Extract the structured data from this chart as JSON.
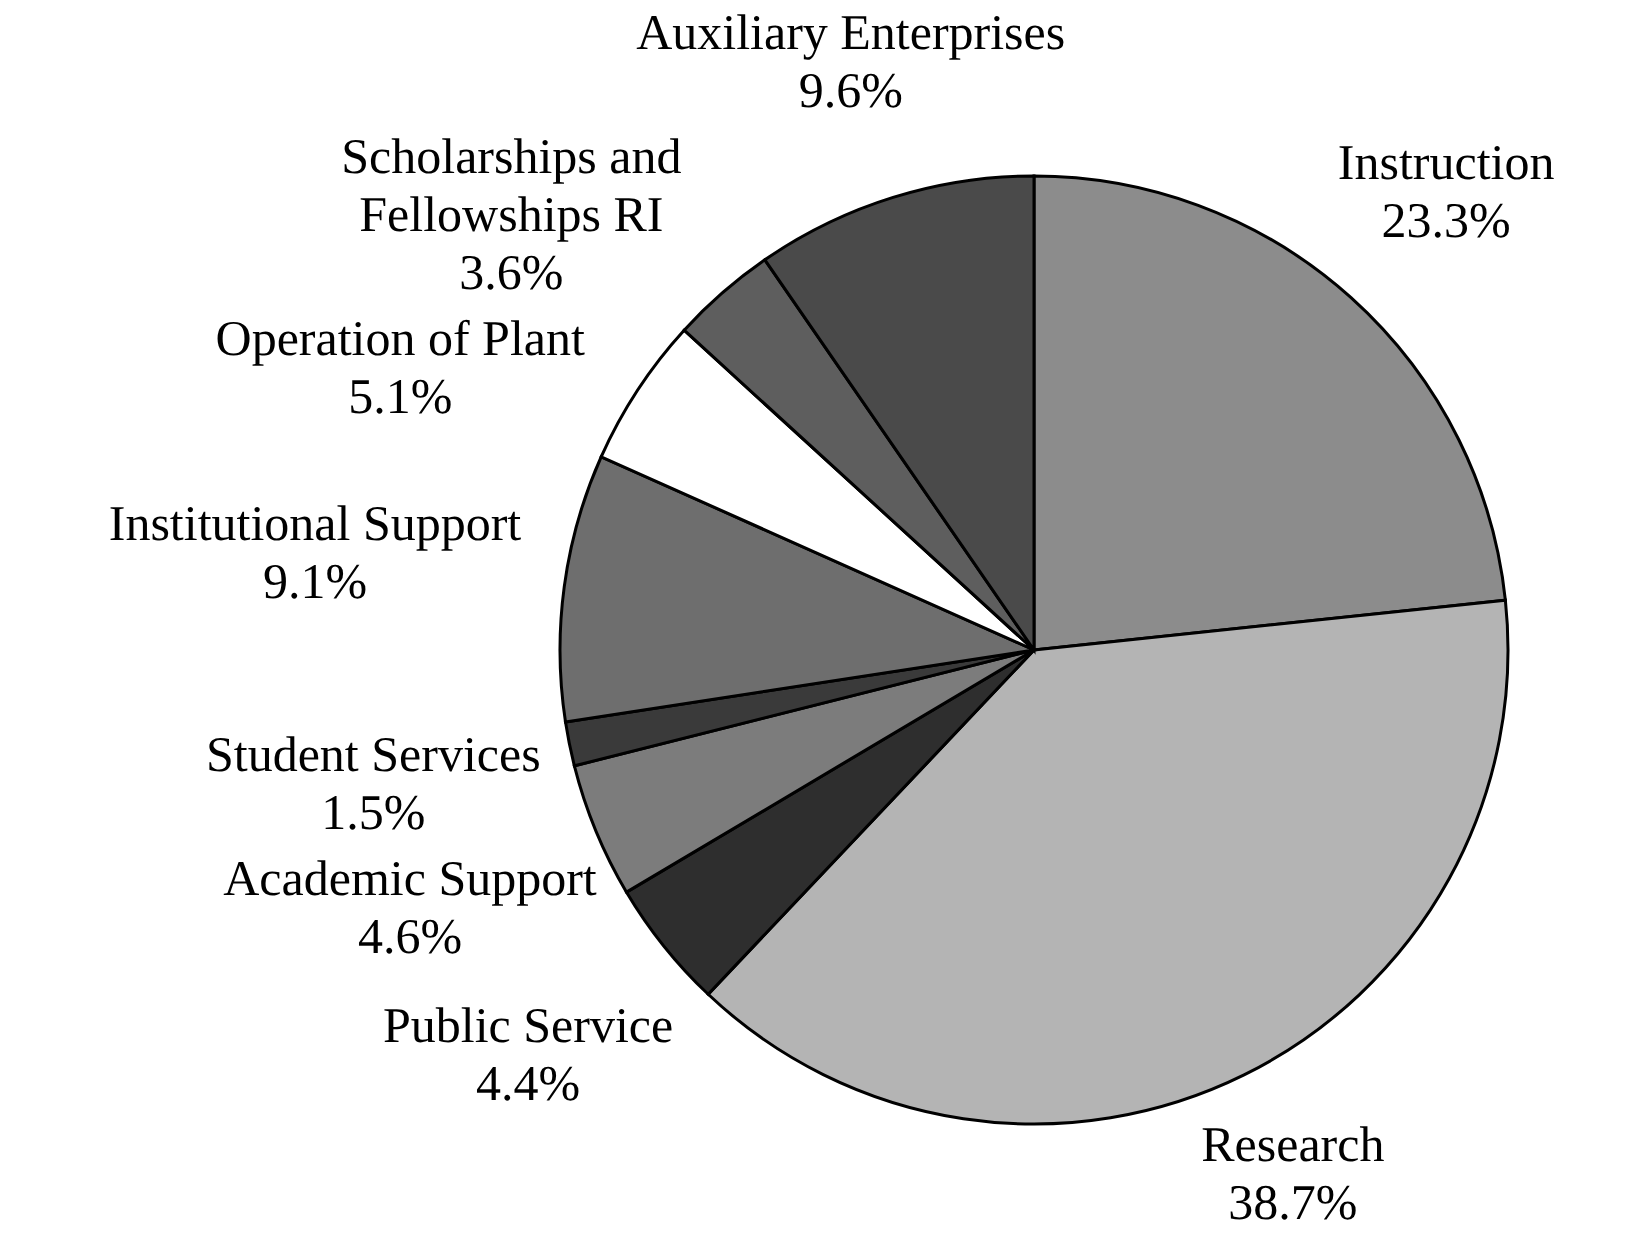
{
  "chart_data": {
    "type": "pie",
    "categories": [
      "Instruction",
      "Research",
      "Public Service",
      "Academic Support",
      "Student Services",
      "Institutional Support",
      "Operation of Plant",
      "Scholarships and Fellowships RI",
      "Auxiliary Enterprises"
    ],
    "values": [
      23.3,
      38.7,
      4.4,
      4.6,
      1.5,
      9.1,
      5.1,
      3.6,
      9.6
    ],
    "value_labels": [
      "23.3%",
      "38.7%",
      "4.4%",
      "4.6%",
      "1.5%",
      "9.1%",
      "5.1%",
      "3.6%",
      "9.6%"
    ],
    "colors": [
      "#8c8c8c",
      "#b4b4b4",
      "#2e2e2e",
      "#7c7c7c",
      "#3a3a3a",
      "#6e6e6e",
      "#ffffff",
      "#5e5e5e",
      "#4a4a4a"
    ]
  }
}
